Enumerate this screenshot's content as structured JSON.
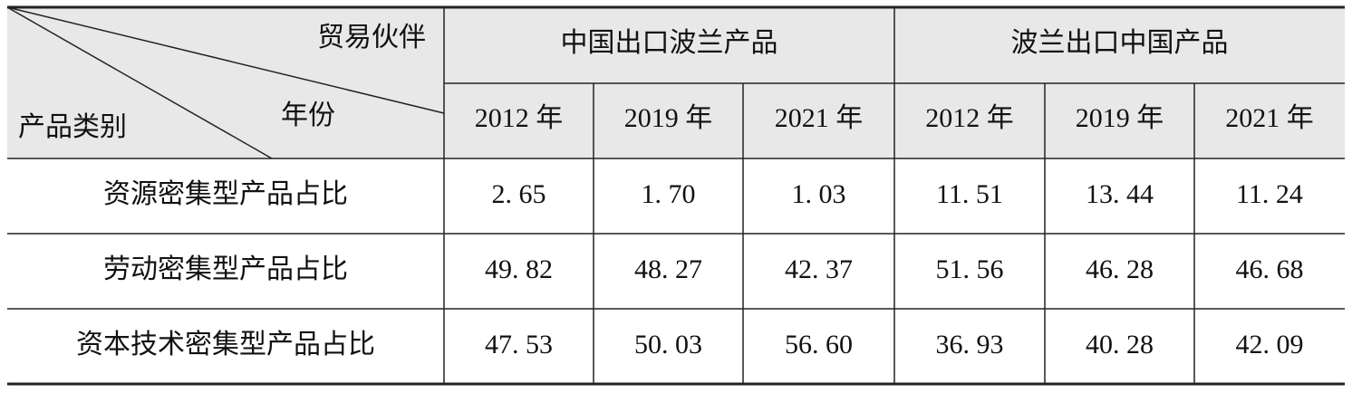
{
  "table": {
    "corner": {
      "top": "贸易伙伴",
      "middle": "年份",
      "bottom": "产品类别"
    },
    "groups": [
      "中国出口波兰产品",
      "波兰出口中国产品"
    ],
    "years": [
      "2012 年",
      "2019 年",
      "2021 年",
      "2012 年",
      "2019 年",
      "2021 年"
    ],
    "rows": [
      {
        "label": "资源密集型产品占比",
        "values": [
          "2. 65",
          "1. 70",
          "1. 03",
          "11. 51",
          "13. 44",
          "11. 24"
        ]
      },
      {
        "label": "劳动密集型产品占比",
        "values": [
          "49. 82",
          "48. 27",
          "42. 37",
          "51. 56",
          "46. 28",
          "46. 68"
        ]
      },
      {
        "label": "资本技术密集型产品占比",
        "values": [
          "47. 53",
          "50. 03",
          "56. 60",
          "36. 93",
          "40. 28",
          "42. 09"
        ]
      }
    ]
  }
}
